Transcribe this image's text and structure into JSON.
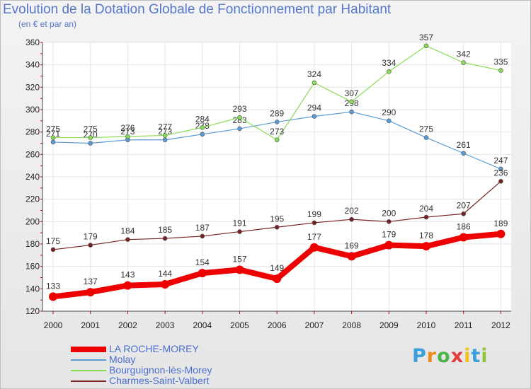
{
  "title": "Evolution de la Dotation Globale de Fonctionnement par Habitant",
  "subtitle": "(en € et par an)",
  "brand": {
    "letters": [
      "P",
      "r",
      "o",
      "x",
      "i",
      "t",
      "i"
    ],
    "colors": [
      "#3aa0dd",
      "#f28a1b",
      "#4bb44b",
      "#e23b3b",
      "#f2c21b",
      "#3aa0dd",
      "#8fc43c"
    ]
  },
  "chart_data": {
    "type": "line",
    "title": "Evolution de la Dotation Globale de Fonctionnement par Habitant",
    "ylabel": "(en € et par an)",
    "xlabel": "",
    "ylim": [
      120,
      360
    ],
    "yticks": [
      120,
      140,
      160,
      180,
      200,
      220,
      240,
      260,
      280,
      300,
      320,
      340,
      360
    ],
    "categories": [
      "2000",
      "2001",
      "2002",
      "2003",
      "2004",
      "2005",
      "2006",
      "2007",
      "2008",
      "2009",
      "2010",
      "2011",
      "2012"
    ],
    "grid": true,
    "legend": "bottom-left",
    "series": [
      {
        "name": "LA ROCHE-MOREY",
        "color": "#ee0000",
        "values": [
          133,
          137,
          143,
          144,
          154,
          157,
          149,
          177,
          169,
          179,
          178,
          186,
          189
        ]
      },
      {
        "name": "Molay",
        "color": "#5b9bd5",
        "values": [
          271,
          270,
          273,
          273,
          278,
          283,
          289,
          294,
          298,
          290,
          275,
          261,
          247
        ]
      },
      {
        "name": "Bourguignon-lès-Morey",
        "color": "#88dd55",
        "values": [
          275,
          275,
          276,
          277,
          284,
          293,
          273,
          324,
          307,
          334,
          357,
          342,
          335
        ]
      },
      {
        "name": "Charmes-Saint-Valbert",
        "color": "#772222",
        "values": [
          175,
          179,
          184,
          185,
          187,
          191,
          195,
          199,
          202,
          200,
          204,
          207,
          236
        ]
      }
    ]
  }
}
